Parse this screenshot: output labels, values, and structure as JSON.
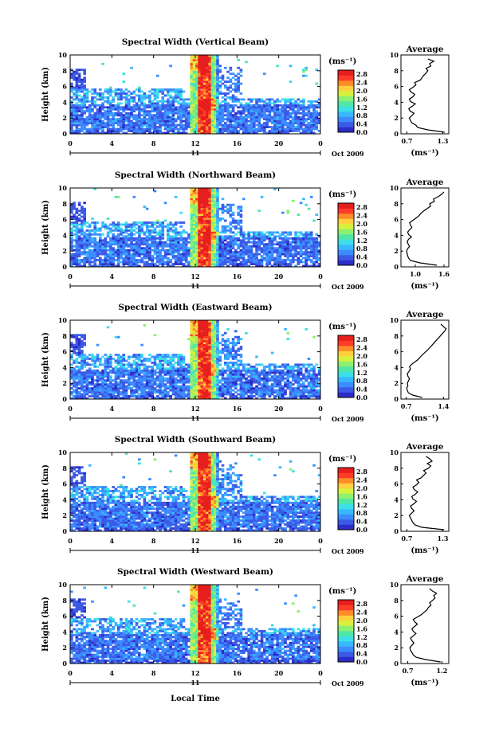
{
  "figure": {
    "xlabel": "Local Time",
    "palette": [
      "#ffffff",
      "#2c2cc8",
      "#3c5ae6",
      "#3c8cff",
      "#38b8ff",
      "#3ce0e6",
      "#50e6a8",
      "#8cf070",
      "#d8f040",
      "#ffd040",
      "#ff8c28",
      "#ff3c28",
      "#e61e1e"
    ]
  },
  "chart_data": [
    {
      "type": "heatmap",
      "title": "Spectral Width (Vertical Beam)",
      "ylabel": "Height (km)",
      "xlabel": "",
      "x_ticks": [
        "0",
        "4",
        "8",
        "12",
        "16",
        "20",
        "0"
      ],
      "y_ticks": [
        "0",
        "2",
        "4",
        "6",
        "8",
        "10"
      ],
      "xlim": [
        0,
        24
      ],
      "ylim": [
        0,
        10
      ],
      "date_mid": "11",
      "date_right": "Oct 2009",
      "colorbar": {
        "unit": "(ms⁻¹)",
        "ticks": [
          "0.0",
          "0.4",
          "0.8",
          "1.2",
          "1.6",
          "2.0",
          "2.4",
          "2.8"
        ],
        "range": [
          0,
          3.0
        ]
      },
      "profile": {
        "title": "Average",
        "unit": "(ms⁻¹)",
        "x_ticks": [
          "0.7",
          "1.3"
        ],
        "xlim": [
          0.6,
          1.4
        ],
        "ylim": [
          0,
          10
        ],
        "y_ticks": [
          "0",
          "2",
          "4",
          "6",
          "8",
          "10"
        ],
        "heights": [
          0.2,
          0.5,
          0.8,
          1.1,
          1.4,
          1.7,
          2.0,
          2.3,
          2.6,
          2.9,
          3.2,
          3.5,
          3.8,
          4.1,
          4.4,
          4.7,
          5.0,
          5.3,
          5.6,
          5.9,
          6.2,
          6.5,
          6.8,
          7.1,
          7.4,
          7.7,
          8.0,
          8.3,
          8.6,
          8.9,
          9.2,
          9.5
        ],
        "values": [
          1.33,
          1.05,
          0.88,
          0.85,
          0.78,
          0.76,
          0.74,
          0.78,
          0.82,
          0.75,
          0.73,
          0.79,
          0.84,
          0.76,
          0.74,
          0.8,
          0.83,
          0.77,
          0.74,
          0.8,
          0.85,
          0.83,
          0.92,
          0.95,
          0.98,
          1.02,
          1.05,
          1.02,
          1.1,
          1.08,
          1.15,
          1.05
        ]
      }
    },
    {
      "type": "heatmap",
      "title": "Spectral Width (Northward Beam)",
      "ylabel": "Height (km)",
      "xlabel": "",
      "x_ticks": [
        "0",
        "4",
        "8",
        "12",
        "16",
        "20",
        "0"
      ],
      "y_ticks": [
        "0",
        "2",
        "4",
        "6",
        "8",
        "10"
      ],
      "xlim": [
        0,
        24
      ],
      "ylim": [
        0,
        10
      ],
      "date_mid": "11",
      "date_right": "Oct 2009",
      "colorbar": {
        "unit": "(ms⁻¹)",
        "ticks": [
          "0.0",
          "0.4",
          "0.8",
          "1.2",
          "1.6",
          "2.0",
          "2.4",
          "2.8"
        ],
        "range": [
          0,
          3.0
        ]
      },
      "profile": {
        "title": "Average",
        "unit": "(ms⁻¹)",
        "x_ticks": [
          "1.0",
          "1.6"
        ],
        "xlim": [
          0.7,
          1.7
        ],
        "ylim": [
          0,
          10
        ],
        "y_ticks": [
          "0",
          "2",
          "4",
          "6",
          "8",
          "10"
        ],
        "heights": [
          0.2,
          0.5,
          0.8,
          1.1,
          1.4,
          1.7,
          2.0,
          2.3,
          2.6,
          2.9,
          3.2,
          3.5,
          3.8,
          4.1,
          4.4,
          4.7,
          5.0,
          5.3,
          5.6,
          5.9,
          6.2,
          6.5,
          6.8,
          7.1,
          7.4,
          7.7,
          8.0,
          8.3,
          8.6,
          8.9,
          9.2,
          9.5
        ],
        "values": [
          1.45,
          1.1,
          0.9,
          0.86,
          0.84,
          0.83,
          0.82,
          0.84,
          0.88,
          0.85,
          0.83,
          0.86,
          0.92,
          0.86,
          0.84,
          0.88,
          0.93,
          0.9,
          0.88,
          0.95,
          1.02,
          1.08,
          1.12,
          1.18,
          1.25,
          1.32,
          1.3,
          1.4,
          1.38,
          1.48,
          1.55,
          1.6
        ]
      }
    },
    {
      "type": "heatmap",
      "title": "Spectral Width (Eastward Beam)",
      "ylabel": "Height (km)",
      "xlabel": "",
      "x_ticks": [
        "0",
        "4",
        "8",
        "12",
        "16",
        "20",
        "0"
      ],
      "y_ticks": [
        "0",
        "2",
        "4",
        "6",
        "8",
        "10"
      ],
      "xlim": [
        0,
        24
      ],
      "ylim": [
        0,
        10
      ],
      "date_mid": "11",
      "date_right": "Oct 2009",
      "colorbar": {
        "unit": "(ms⁻¹)",
        "ticks": [
          "0.0",
          "0.4",
          "0.8",
          "1.2",
          "1.6",
          "2.0",
          "2.4",
          "2.8"
        ],
        "range": [
          0,
          3.0
        ]
      },
      "profile": {
        "title": "Average",
        "unit": "(ms⁻¹)",
        "x_ticks": [
          "0.7",
          "1.4"
        ],
        "xlim": [
          0.6,
          1.5
        ],
        "ylim": [
          0,
          10
        ],
        "y_ticks": [
          "0",
          "2",
          "4",
          "6",
          "8",
          "10"
        ],
        "heights": [
          0.2,
          0.5,
          0.8,
          1.1,
          1.4,
          1.7,
          2.0,
          2.3,
          2.6,
          2.9,
          3.2,
          3.5,
          3.8,
          4.1,
          4.4,
          4.7,
          5.0,
          5.3,
          5.6,
          5.9,
          6.2,
          6.5,
          6.8,
          7.1,
          7.4,
          7.7,
          8.0,
          8.3,
          8.6,
          8.9,
          9.2,
          9.5
        ],
        "values": [
          1.0,
          0.82,
          0.74,
          0.72,
          0.71,
          0.73,
          0.72,
          0.74,
          0.76,
          0.73,
          0.72,
          0.75,
          0.78,
          0.76,
          0.8,
          0.86,
          0.92,
          0.96,
          1.0,
          1.05,
          1.1,
          1.14,
          1.18,
          1.22,
          1.26,
          1.3,
          1.34,
          1.38,
          1.42,
          1.45,
          1.4,
          1.35
        ]
      }
    },
    {
      "type": "heatmap",
      "title": "Spectral Width (Southward Beam)",
      "ylabel": "Height (km)",
      "xlabel": "",
      "x_ticks": [
        "0",
        "4",
        "8",
        "12",
        "16",
        "20",
        "0"
      ],
      "y_ticks": [
        "0",
        "2",
        "4",
        "6",
        "8",
        "10"
      ],
      "xlim": [
        0,
        24
      ],
      "ylim": [
        0,
        10
      ],
      "date_mid": "11",
      "date_right": "Oct 2009",
      "colorbar": {
        "unit": "(ms⁻¹)",
        "ticks": [
          "0.0",
          "0.4",
          "0.8",
          "1.2",
          "1.6",
          "2.0",
          "2.4",
          "2.8"
        ],
        "range": [
          0,
          3.0
        ]
      },
      "profile": {
        "title": "Average",
        "unit": "(ms⁻¹)",
        "x_ticks": [
          "0.7",
          "1.3"
        ],
        "xlim": [
          0.6,
          1.4
        ],
        "ylim": [
          0,
          10
        ],
        "y_ticks": [
          "0",
          "2",
          "4",
          "6",
          "8",
          "10"
        ],
        "heights": [
          0.2,
          0.5,
          0.8,
          1.1,
          1.4,
          1.7,
          2.0,
          2.3,
          2.6,
          2.9,
          3.2,
          3.5,
          3.8,
          4.1,
          4.4,
          4.7,
          5.0,
          5.3,
          5.6,
          5.9,
          6.2,
          6.5,
          6.8,
          7.1,
          7.4,
          7.7,
          8.0,
          8.3,
          8.6,
          8.9,
          9.2,
          9.5
        ],
        "values": [
          1.32,
          0.95,
          0.84,
          0.8,
          0.78,
          0.76,
          0.74,
          0.78,
          0.82,
          0.78,
          0.76,
          0.82,
          0.86,
          0.8,
          0.78,
          0.84,
          0.88,
          0.82,
          0.8,
          0.86,
          0.9,
          0.86,
          0.94,
          0.98,
          1.02,
          0.98,
          1.06,
          1.1,
          1.04,
          1.12,
          1.08,
          1.02
        ]
      }
    },
    {
      "type": "heatmap",
      "title": "Spectral Width (Westward Beam)",
      "ylabel": "Height (km)",
      "xlabel": "",
      "x_ticks": [
        "0",
        "4",
        "8",
        "12",
        "16",
        "20",
        "0"
      ],
      "y_ticks": [
        "0",
        "2",
        "4",
        "6",
        "8",
        "10"
      ],
      "xlim": [
        0,
        24
      ],
      "ylim": [
        0,
        10
      ],
      "date_mid": "11",
      "date_right": "Oct 2009",
      "colorbar": {
        "unit": "(ms⁻¹)",
        "ticks": [
          "0.0",
          "0.4",
          "0.8",
          "1.2",
          "1.6",
          "2.0",
          "2.4",
          "2.8"
        ],
        "range": [
          0,
          3.0
        ]
      },
      "profile": {
        "title": "Average",
        "unit": "(ms⁻¹)",
        "x_ticks": [
          "0.7",
          "1.2"
        ],
        "xlim": [
          0.6,
          1.3
        ],
        "ylim": [
          0,
          10
        ],
        "y_ticks": [
          "0",
          "2",
          "4",
          "6",
          "8",
          "10"
        ],
        "heights": [
          0.2,
          0.5,
          0.8,
          1.1,
          1.4,
          1.7,
          2.0,
          2.3,
          2.6,
          2.9,
          3.2,
          3.5,
          3.8,
          4.1,
          4.4,
          4.7,
          5.0,
          5.3,
          5.6,
          5.9,
          6.2,
          6.5,
          6.8,
          7.1,
          7.4,
          7.7,
          8.0,
          8.3,
          8.6,
          8.9,
          9.2,
          9.5
        ],
        "values": [
          1.18,
          0.96,
          0.82,
          0.78,
          0.76,
          0.74,
          0.73,
          0.76,
          0.79,
          0.76,
          0.74,
          0.78,
          0.82,
          0.78,
          0.76,
          0.8,
          0.84,
          0.8,
          0.78,
          0.84,
          0.9,
          0.94,
          0.98,
          1.0,
          1.04,
          1.02,
          1.06,
          1.1,
          1.08,
          1.12,
          1.06,
          1.02
        ]
      }
    }
  ]
}
